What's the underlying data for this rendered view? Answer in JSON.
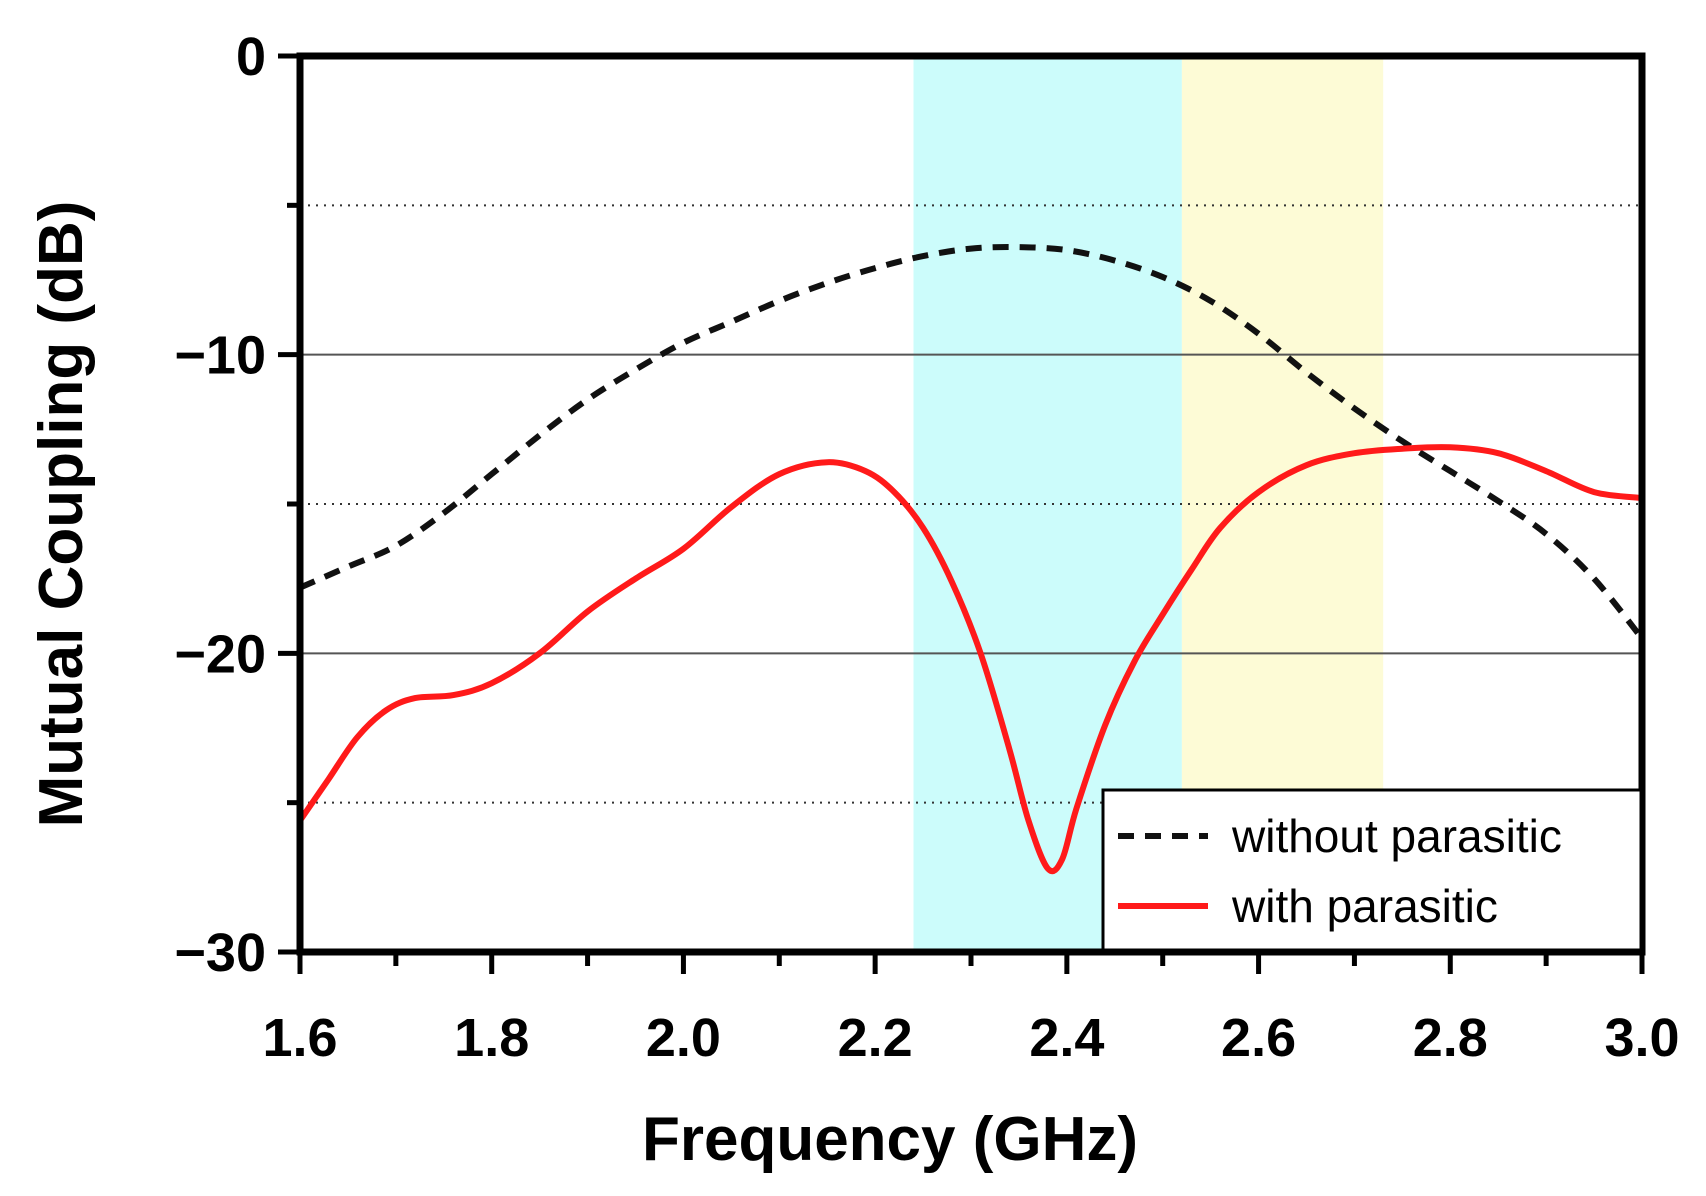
{
  "chart_data": {
    "type": "line",
    "title": "",
    "xlabel": "Frequency (GHz)",
    "ylabel": "Mutual Coupling (dB)",
    "xlim": [
      1.6,
      3.0
    ],
    "ylim": [
      -30,
      0
    ],
    "xticks": [
      1.6,
      1.8,
      2.0,
      2.2,
      2.4,
      2.6,
      2.8,
      3.0
    ],
    "xtick_labels": [
      "1.6",
      "1.8",
      "2.0",
      "2.2",
      "2.4",
      "2.6",
      "2.8",
      "3.0"
    ],
    "xminor_step": 0.1,
    "yticks": [
      0,
      -10,
      -20,
      -30
    ],
    "ytick_labels": [
      "0",
      "−10",
      "−20",
      "−30"
    ],
    "grid": {
      "solid": [
        -10,
        -20
      ],
      "dotted": [
        -5,
        -15,
        -25
      ]
    },
    "bands": [
      {
        "x0": 2.24,
        "x1": 2.52,
        "color": "#ccfcfb"
      },
      {
        "x0": 2.52,
        "x1": 2.73,
        "color": "#fdfbd6"
      }
    ],
    "legend_position": "bottom-right",
    "series": [
      {
        "name": "without parasitic",
        "style": "dashed",
        "color": "#111111",
        "points": [
          [
            1.6,
            -17.8
          ],
          [
            1.65,
            -17.1
          ],
          [
            1.7,
            -16.4
          ],
          [
            1.75,
            -15.3
          ],
          [
            1.8,
            -14.0
          ],
          [
            1.85,
            -12.7
          ],
          [
            1.9,
            -11.5
          ],
          [
            1.95,
            -10.5
          ],
          [
            2.0,
            -9.6
          ],
          [
            2.05,
            -8.9
          ],
          [
            2.1,
            -8.2
          ],
          [
            2.15,
            -7.6
          ],
          [
            2.2,
            -7.1
          ],
          [
            2.25,
            -6.7
          ],
          [
            2.3,
            -6.45
          ],
          [
            2.35,
            -6.4
          ],
          [
            2.4,
            -6.5
          ],
          [
            2.45,
            -6.85
          ],
          [
            2.5,
            -7.4
          ],
          [
            2.55,
            -8.2
          ],
          [
            2.6,
            -9.3
          ],
          [
            2.65,
            -10.6
          ],
          [
            2.7,
            -11.8
          ],
          [
            2.75,
            -12.9
          ],
          [
            2.8,
            -13.9
          ],
          [
            2.85,
            -14.9
          ],
          [
            2.9,
            -16.0
          ],
          [
            2.95,
            -17.5
          ],
          [
            3.0,
            -19.5
          ]
        ]
      },
      {
        "name": "with parasitic",
        "style": "solid",
        "color": "#ff1a1a",
        "points": [
          [
            1.6,
            -25.6
          ],
          [
            1.63,
            -24.2
          ],
          [
            1.66,
            -22.8
          ],
          [
            1.69,
            -21.9
          ],
          [
            1.72,
            -21.5
          ],
          [
            1.76,
            -21.4
          ],
          [
            1.8,
            -21.0
          ],
          [
            1.85,
            -20.0
          ],
          [
            1.9,
            -18.6
          ],
          [
            1.95,
            -17.5
          ],
          [
            2.0,
            -16.5
          ],
          [
            2.05,
            -15.1
          ],
          [
            2.1,
            -14.0
          ],
          [
            2.15,
            -13.6
          ],
          [
            2.19,
            -13.9
          ],
          [
            2.22,
            -14.6
          ],
          [
            2.25,
            -15.8
          ],
          [
            2.28,
            -17.6
          ],
          [
            2.31,
            -20.0
          ],
          [
            2.34,
            -23.2
          ],
          [
            2.36,
            -25.6
          ],
          [
            2.38,
            -27.2
          ],
          [
            2.395,
            -26.9
          ],
          [
            2.41,
            -25.2
          ],
          [
            2.44,
            -22.4
          ],
          [
            2.47,
            -20.3
          ],
          [
            2.5,
            -18.7
          ],
          [
            2.53,
            -17.2
          ],
          [
            2.56,
            -15.8
          ],
          [
            2.6,
            -14.6
          ],
          [
            2.65,
            -13.7
          ],
          [
            2.7,
            -13.3
          ],
          [
            2.75,
            -13.15
          ],
          [
            2.8,
            -13.1
          ],
          [
            2.85,
            -13.3
          ],
          [
            2.9,
            -13.9
          ],
          [
            2.95,
            -14.6
          ],
          [
            3.0,
            -14.8
          ]
        ]
      }
    ]
  }
}
